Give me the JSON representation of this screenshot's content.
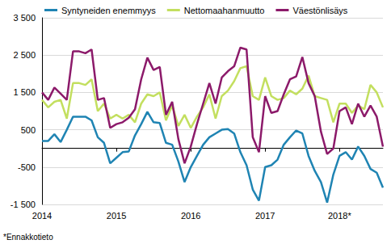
{
  "chart_data": {
    "type": "line",
    "categories": [
      "2014",
      null,
      null,
      null,
      null,
      null,
      null,
      null,
      null,
      null,
      null,
      null,
      "2015",
      null,
      null,
      null,
      null,
      null,
      null,
      null,
      null,
      null,
      null,
      null,
      "2016",
      null,
      null,
      null,
      null,
      null,
      null,
      null,
      null,
      null,
      null,
      null,
      "2017",
      null,
      null,
      null,
      null,
      null,
      null,
      null,
      null,
      null,
      null,
      null,
      "2018*",
      null,
      null,
      null,
      null,
      null,
      null,
      null
    ],
    "series": [
      {
        "name": "Syntyneiden enemmyys",
        "color": "#1f84b3",
        "values": [
          200,
          200,
          380,
          170,
          500,
          850,
          850,
          850,
          750,
          300,
          150,
          -400,
          -250,
          -100,
          -80,
          350,
          650,
          980,
          700,
          680,
          150,
          100,
          -350,
          -900,
          -500,
          -200,
          100,
          300,
          400,
          500,
          520,
          400,
          -100,
          -450,
          -1100,
          -1400,
          -500,
          -450,
          -300,
          100,
          300,
          480,
          400,
          -200,
          -600,
          -900,
          -1450,
          -700,
          -200,
          -100,
          -300,
          50,
          -200,
          -550,
          -650,
          -1050
        ]
      },
      {
        "name": "Nettomaahanmuutto",
        "color": "#c3df5f",
        "values": [
          1300,
          1100,
          1250,
          1300,
          800,
          1750,
          1750,
          1700,
          1850,
          1000,
          1200,
          800,
          900,
          800,
          900,
          700,
          1200,
          1450,
          1400,
          1500,
          750,
          1150,
          600,
          900,
          550,
          850,
          1100,
          1450,
          800,
          1400,
          1550,
          1800,
          2150,
          2200,
          1400,
          1300,
          1900,
          1400,
          1300,
          1350,
          1550,
          1450,
          1600,
          1950,
          1400,
          1350,
          1300,
          700,
          1200,
          1200,
          950,
          1150,
          1050,
          1700,
          1500,
          1100
        ]
      },
      {
        "name": "Väestönlisäys",
        "color": "#8c1a6a",
        "values": [
          1500,
          1300,
          1630,
          1470,
          1300,
          2600,
          2600,
          2550,
          2650,
          1300,
          1350,
          550,
          650,
          700,
          820,
          1050,
          1850,
          2430,
          2100,
          2180,
          900,
          1250,
          250,
          -400,
          50,
          650,
          1200,
          1750,
          1200,
          1900,
          2070,
          2200,
          2700,
          2650,
          300,
          -100,
          1400,
          950,
          1000,
          1450,
          1850,
          1930,
          2450,
          1750,
          1400,
          450,
          -150,
          0,
          1000,
          1100,
          650,
          1200,
          850,
          1150,
          850,
          50
        ]
      }
    ],
    "ylim": [
      -1500,
      3500
    ],
    "yticks": [
      {
        "value": -1500,
        "label": "-1 500"
      },
      -500,
      500,
      {
        "value": 1500,
        "label": "1 500"
      },
      {
        "value": 2500,
        "label": "2 500"
      },
      {
        "value": 3500,
        "label": "3 500"
      }
    ],
    "grid": true,
    "legend": "top",
    "annotations": [
      "*Ennakkotieto"
    ]
  }
}
